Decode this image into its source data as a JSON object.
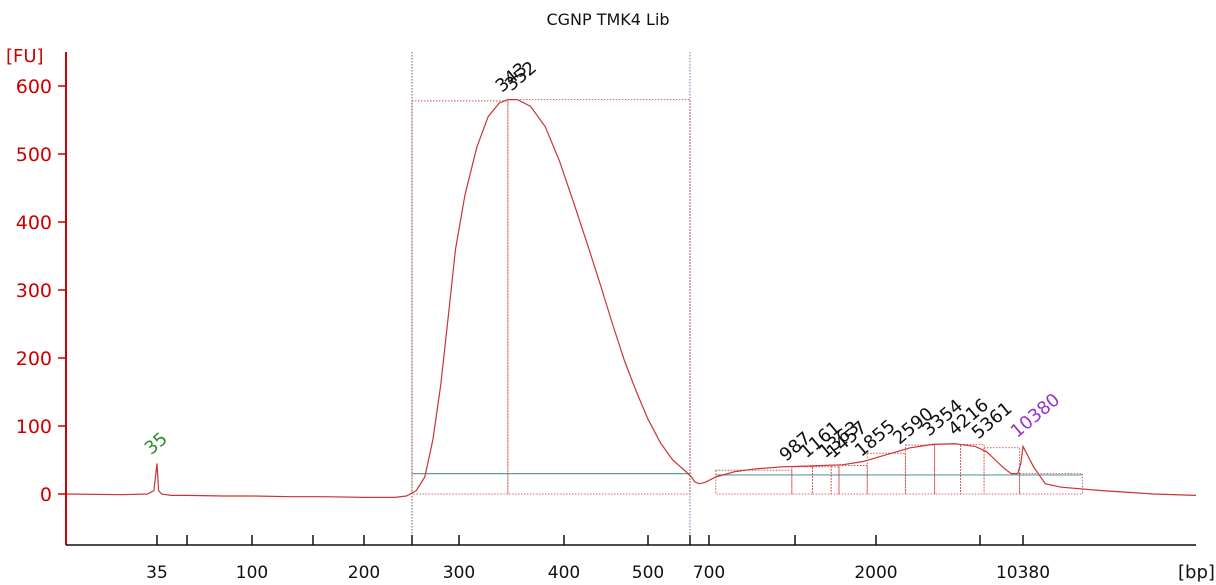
{
  "chart_data": {
    "type": "line",
    "title": "CGNP TMK4 Lib",
    "ylabel": "[FU]",
    "xlabel": "[bp]",
    "ylim": [
      -70,
      620
    ],
    "yticks": [
      0,
      100,
      200,
      300,
      400,
      500,
      600
    ],
    "xticks": [
      "35",
      "100",
      "200",
      "300",
      "400",
      "500",
      "700",
      "2000",
      "10380"
    ],
    "grid": false,
    "colors": {
      "trace": "#cc3333",
      "axis": "#cc0000",
      "baseline": "#5f9f9f",
      "marker_lower": "#2e8b2e",
      "marker_upper": "#9933cc",
      "region_line": "#333333",
      "peak_label": "#111111"
    },
    "peak_labels": [
      {
        "text": "35",
        "bp": 35,
        "fu": 45,
        "kind": "marker_lower"
      },
      {
        "text": "343",
        "bp": 343,
        "fu": 578,
        "kind": "peak"
      },
      {
        "text": "352",
        "bp": 352,
        "fu": 580,
        "kind": "peak"
      },
      {
        "text": "987",
        "bp": 987,
        "fu": 35,
        "kind": "peak"
      },
      {
        "text": "1161",
        "bp": 1161,
        "fu": 40,
        "kind": "peak"
      },
      {
        "text": "1363",
        "bp": 1363,
        "fu": 40,
        "kind": "peak"
      },
      {
        "text": "1457",
        "bp": 1457,
        "fu": 40,
        "kind": "peak"
      },
      {
        "text": "1855",
        "bp": 1855,
        "fu": 42,
        "kind": "peak"
      },
      {
        "text": "2590",
        "bp": 2590,
        "fu": 60,
        "kind": "peak"
      },
      {
        "text": "3354",
        "bp": 3354,
        "fu": 72,
        "kind": "peak"
      },
      {
        "text": "4216",
        "bp": 4216,
        "fu": 73,
        "kind": "peak"
      },
      {
        "text": "5361",
        "bp": 5361,
        "fu": 68,
        "kind": "peak"
      },
      {
        "text": "10380",
        "bp": 10380,
        "fu": 70,
        "kind": "marker_upper"
      }
    ],
    "region_bounds_bp": [
      240,
      570
    ],
    "series": [
      {
        "points": [
          [
            15,
            0
          ],
          [
            25,
            -1
          ],
          [
            32,
            0
          ],
          [
            34,
            5
          ],
          [
            35,
            45
          ],
          [
            36,
            5
          ],
          [
            38,
            0
          ],
          [
            45,
            -2
          ],
          [
            60,
            -2
          ],
          [
            80,
            -3
          ],
          [
            100,
            -3
          ],
          [
            130,
            -4
          ],
          [
            160,
            -4
          ],
          [
            200,
            -5
          ],
          [
            225,
            -5
          ],
          [
            235,
            -3
          ],
          [
            245,
            5
          ],
          [
            255,
            25
          ],
          [
            265,
            80
          ],
          [
            275,
            160
          ],
          [
            285,
            260
          ],
          [
            295,
            360
          ],
          [
            305,
            440
          ],
          [
            315,
            510
          ],
          [
            325,
            555
          ],
          [
            335,
            575
          ],
          [
            343,
            580
          ],
          [
            352,
            580
          ],
          [
            365,
            570
          ],
          [
            380,
            540
          ],
          [
            395,
            490
          ],
          [
            410,
            430
          ],
          [
            425,
            370
          ],
          [
            440,
            310
          ],
          [
            455,
            250
          ],
          [
            470,
            195
          ],
          [
            485,
            150
          ],
          [
            500,
            110
          ],
          [
            520,
            75
          ],
          [
            540,
            50
          ],
          [
            560,
            35
          ],
          [
            580,
            25
          ],
          [
            600,
            18
          ],
          [
            630,
            15
          ],
          [
            670,
            17
          ],
          [
            720,
            25
          ],
          [
            780,
            33
          ],
          [
            850,
            37
          ],
          [
            950,
            40
          ],
          [
            1100,
            41
          ],
          [
            1300,
            42
          ],
          [
            1500,
            43
          ],
          [
            1800,
            48
          ],
          [
            2200,
            58
          ],
          [
            2700,
            68
          ],
          [
            3300,
            73
          ],
          [
            4000,
            74
          ],
          [
            4800,
            70
          ],
          [
            5600,
            62
          ],
          [
            6500,
            50
          ],
          [
            7500,
            38
          ],
          [
            8500,
            30
          ],
          [
            9500,
            30
          ],
          [
            10000,
            45
          ],
          [
            10380,
            70
          ],
          [
            10800,
            40
          ],
          [
            11300,
            15
          ],
          [
            12000,
            10
          ],
          [
            14000,
            5
          ],
          [
            17000,
            0
          ],
          [
            20000,
            -2
          ]
        ]
      }
    ]
  }
}
